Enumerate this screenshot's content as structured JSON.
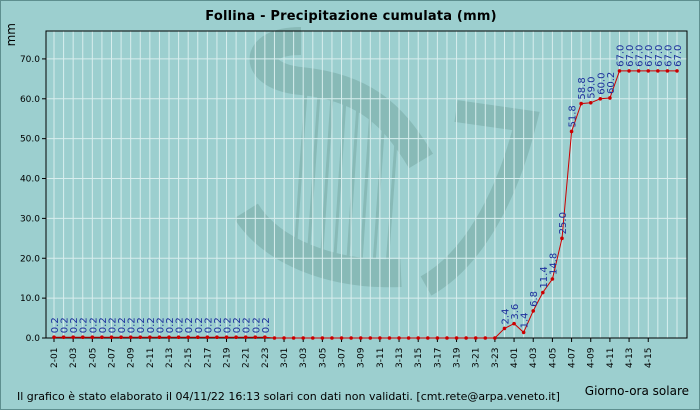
{
  "chart_data": {
    "type": "line",
    "title": "Follina - Precipitazione cumulata (mm)",
    "ylabel": "mm",
    "xlabel": "Giorno-ora solare",
    "footer": "Il grafico è stato elaborato il 04/11/22 16:13 solari con dati non validati. [cmt.rete@arpa.veneto.it]",
    "ylim": [
      0,
      77
    ],
    "yticks": [
      "0.0",
      "10.0",
      "20.0",
      "30.0",
      "40.0",
      "50.0",
      "60.0",
      "70.0"
    ],
    "xticks": [
      "2-01",
      "2-03",
      "2-05",
      "2-07",
      "2-09",
      "2-11",
      "2-13",
      "2-15",
      "2-17",
      "2-19",
      "2-21",
      "2-23",
      "3-01",
      "3-03",
      "3-05",
      "3-07",
      "3-09",
      "3-11",
      "3-13",
      "3-15",
      "3-17",
      "3-19",
      "3-21",
      "3-23",
      "4-01",
      "4-03",
      "4-05",
      "4-07",
      "4-09",
      "4-11",
      "4-13",
      "4-15"
    ],
    "grid": true,
    "series": [
      {
        "color": "#cc0000",
        "values": [
          0.2,
          0.2,
          0.2,
          0.2,
          0.2,
          0.2,
          0.2,
          0.2,
          0.2,
          0.2,
          0.2,
          0.2,
          0.2,
          0.2,
          0.2,
          0.2,
          0.2,
          0.2,
          0.2,
          0.2,
          0.2,
          0.2,
          0.2,
          0,
          0,
          0,
          0,
          0,
          0,
          0,
          0,
          0,
          0,
          0,
          0,
          0,
          0,
          0,
          0,
          0,
          0,
          0,
          0,
          0,
          0,
          0,
          0,
          2.4,
          3.6,
          1.4,
          6.8,
          11.4,
          14.8,
          25.0,
          51.8,
          58.8,
          59.0,
          60.0,
          60.2,
          67.0,
          67.0,
          67.0,
          67.0,
          67.0,
          67.0,
          67.0
        ],
        "labels": [
          "0.2",
          "0.2",
          "0.2",
          "0.2",
          "0.2",
          "0.2",
          "0.2",
          "0.2",
          "0.2",
          "0.2",
          "0.2",
          "0.2",
          "0.2",
          "0.2",
          "0.2",
          "0.2",
          "0.2",
          "0.2",
          "0.2",
          "0.2",
          "0.2",
          "0.2",
          "0.2",
          "",
          "",
          "",
          "",
          "",
          "",
          "",
          "",
          "",
          "",
          "",
          "",
          "",
          "",
          "",
          "",
          "",
          "",
          "",
          "",
          "",
          "",
          "",
          "",
          "2.4",
          "3.6",
          "1.4",
          "6.8",
          "11.4",
          "14.8",
          "25.0",
          "51.8",
          "58.8",
          "59.0",
          "60.0",
          "60.2",
          "67.0",
          "67.0",
          "67.0",
          "67.0",
          "67.0",
          "67.0",
          "67.0"
        ]
      }
    ],
    "colors": {
      "background": "#9ccfcf",
      "grid": "#d8eeee",
      "line": "#cc0000",
      "value_labels": "#1d2f9c",
      "watermark": "#79a9a5"
    },
    "watermark": "harp-logo-icon"
  }
}
